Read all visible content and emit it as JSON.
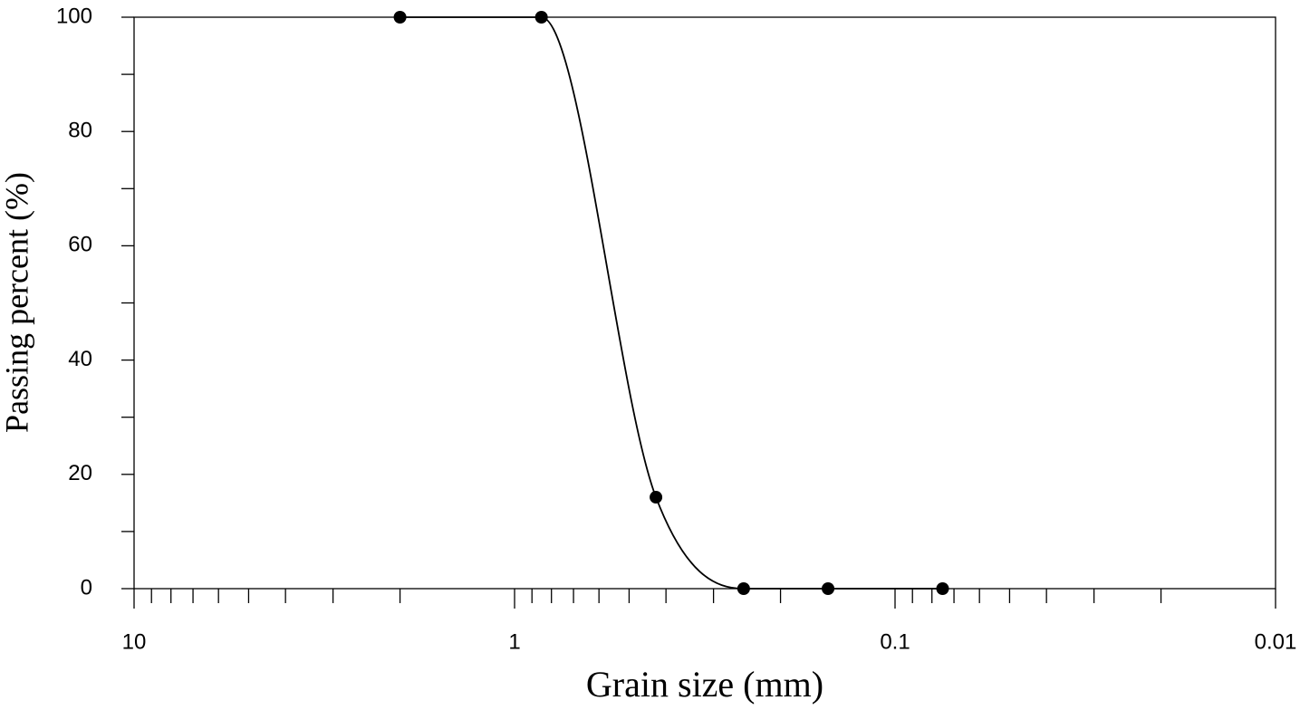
{
  "chart_data": {
    "type": "line",
    "x_label": "Grain size (mm)",
    "y_label": "Passing percent (%)",
    "x_log": true,
    "xlim": [
      10,
      0.01
    ],
    "xticks": [
      10,
      1,
      0.1,
      0.01
    ],
    "xminorticks": [
      9,
      8,
      7,
      6,
      5,
      4,
      3,
      2,
      0.9,
      0.8,
      0.7,
      0.6,
      0.5,
      0.4,
      0.3,
      0.2,
      0.09,
      0.08,
      0.07,
      0.06,
      0.05,
      0.04,
      0.03,
      0.02
    ],
    "ylim": [
      0,
      100
    ],
    "yticks": [
      0,
      20,
      40,
      60,
      80,
      100
    ],
    "yminorticks": [
      10,
      30,
      50,
      70,
      90
    ],
    "x": [
      2,
      0.85,
      0.425,
      0.25,
      0.15,
      0.075
    ],
    "series": [
      {
        "color": "#000000",
        "values": [
          100,
          100,
          16,
          0,
          0,
          0
        ]
      }
    ]
  }
}
